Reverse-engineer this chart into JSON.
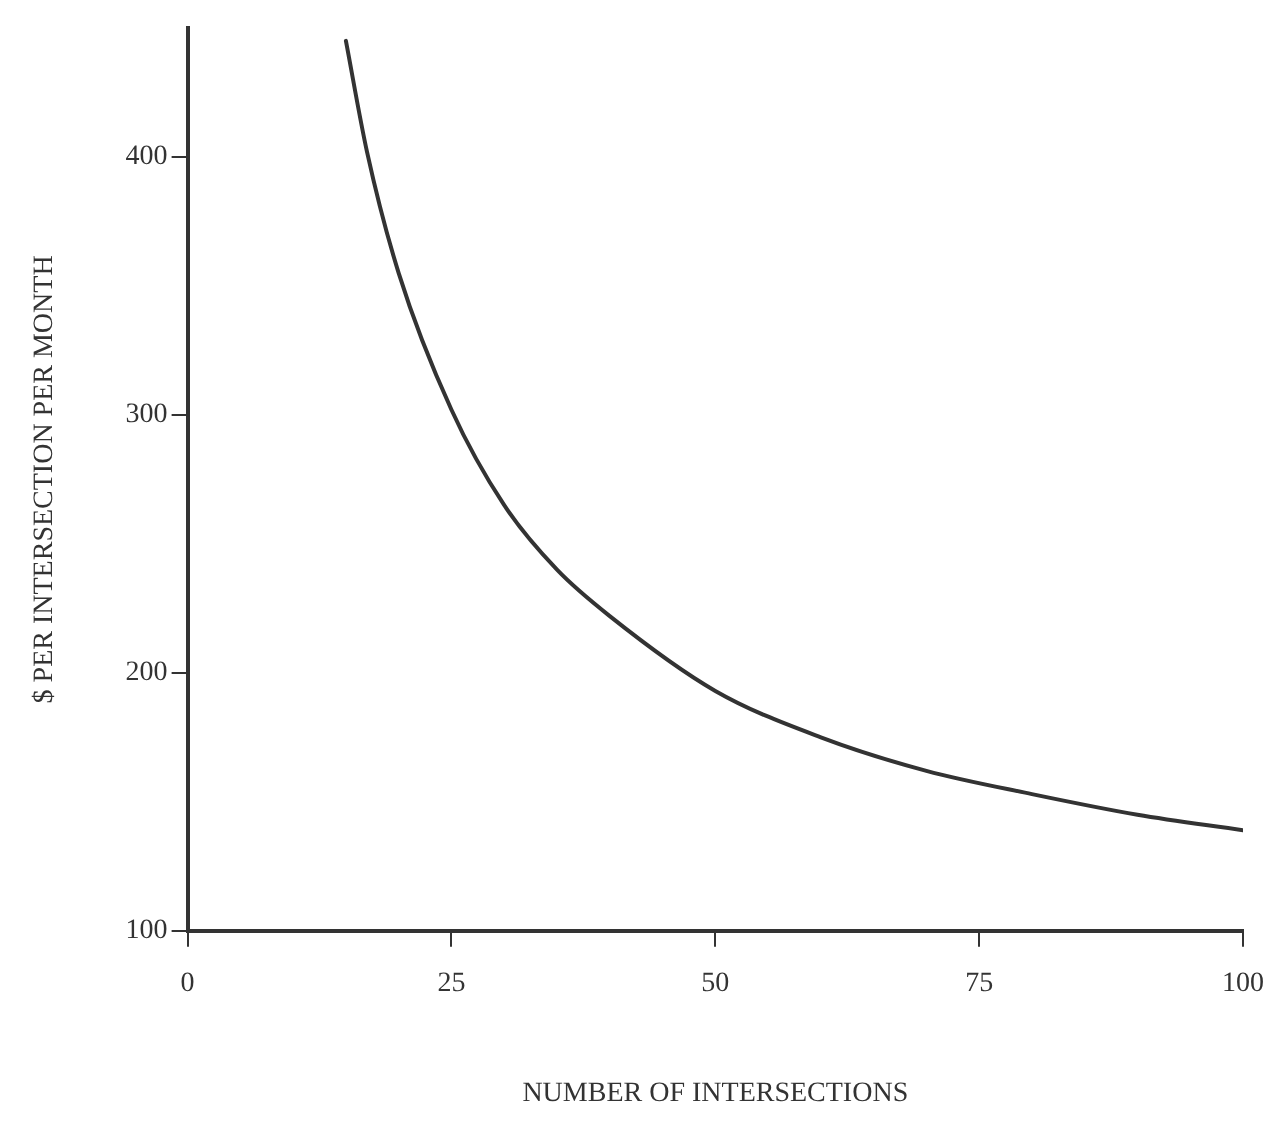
{
  "chart_data": {
    "type": "line",
    "xlabel": "NUMBER OF INTERSECTIONS",
    "ylabel": "$ PER INTERSECTION PER MONTH",
    "x": [
      15,
      17,
      20,
      25,
      30,
      35,
      40,
      50,
      60,
      70,
      80,
      90,
      100
    ],
    "series": [
      {
        "color": "#333333",
        "values": [
          445,
          402,
          355,
          302,
          265,
          240,
          222,
          193,
          175,
          162,
          153,
          145,
          139
        ]
      }
    ],
    "xlim": [
      0,
      100
    ],
    "xticks": [
      0,
      25,
      50,
      75,
      100
    ],
    "ylim": [
      100,
      450
    ],
    "yticks": [
      100,
      200,
      300,
      400
    ],
    "grid": false,
    "legend": false,
    "marker": "none",
    "line_style": "solid"
  }
}
